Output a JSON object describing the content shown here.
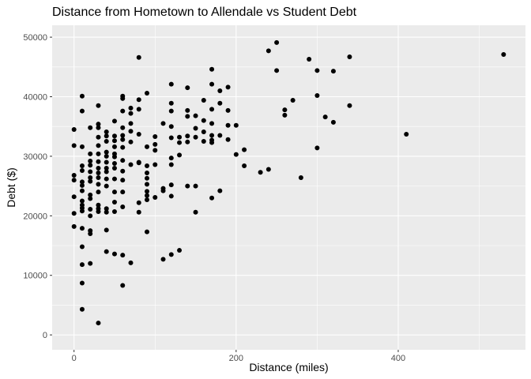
{
  "chart_data": {
    "type": "scatter",
    "title": "Distance from Hometown to Allendale vs Student Debt",
    "xlabel": "Distance (miles)",
    "ylabel": "Debt ($)",
    "xlim": [
      -27,
      557
    ],
    "ylim": [
      -2500,
      52000
    ],
    "x_ticks": [
      0,
      200,
      400
    ],
    "x_tick_labels": [
      "0",
      "200",
      "400"
    ],
    "y_ticks": [
      0,
      10000,
      20000,
      30000,
      40000,
      50000
    ],
    "y_tick_labels": [
      "0",
      "10000",
      "20000",
      "30000",
      "40000",
      "50000"
    ],
    "grid": true,
    "panel_color": "#ebebeb",
    "point_color": "#000000",
    "series": [
      {
        "points": [
          [
            0,
            34500
          ],
          [
            0,
            31800
          ],
          [
            0,
            26800
          ],
          [
            0,
            26000
          ],
          [
            0,
            23200
          ],
          [
            0,
            20400
          ],
          [
            0,
            18200
          ],
          [
            10,
            40100
          ],
          [
            10,
            37600
          ],
          [
            10,
            31600
          ],
          [
            10,
            28400
          ],
          [
            10,
            27600
          ],
          [
            10,
            25700
          ],
          [
            10,
            25100
          ],
          [
            10,
            24200
          ],
          [
            10,
            22500
          ],
          [
            10,
            21800
          ],
          [
            10,
            21300
          ],
          [
            10,
            20800
          ],
          [
            10,
            17900
          ],
          [
            10,
            14800
          ],
          [
            10,
            11800
          ],
          [
            10,
            8700
          ],
          [
            10,
            4300
          ],
          [
            20,
            34800
          ],
          [
            20,
            30400
          ],
          [
            20,
            29200
          ],
          [
            20,
            28500
          ],
          [
            20,
            27400
          ],
          [
            20,
            26400
          ],
          [
            20,
            25800
          ],
          [
            20,
            23500
          ],
          [
            20,
            22900
          ],
          [
            20,
            21100
          ],
          [
            20,
            20000
          ],
          [
            20,
            17500
          ],
          [
            20,
            17000
          ],
          [
            20,
            12000
          ],
          [
            30,
            38500
          ],
          [
            30,
            35400
          ],
          [
            30,
            34800
          ],
          [
            30,
            33200
          ],
          [
            30,
            31800
          ],
          [
            30,
            30400
          ],
          [
            30,
            29100
          ],
          [
            30,
            28000
          ],
          [
            30,
            27200
          ],
          [
            30,
            26400
          ],
          [
            30,
            25300
          ],
          [
            30,
            24000
          ],
          [
            30,
            21800
          ],
          [
            30,
            21200
          ],
          [
            30,
            20700
          ],
          [
            30,
            2000
          ],
          [
            40,
            34100
          ],
          [
            40,
            33400
          ],
          [
            40,
            32500
          ],
          [
            40,
            30700
          ],
          [
            40,
            30000
          ],
          [
            40,
            29000
          ],
          [
            40,
            28000
          ],
          [
            40,
            27400
          ],
          [
            40,
            26200
          ],
          [
            40,
            25000
          ],
          [
            40,
            21200
          ],
          [
            40,
            20600
          ],
          [
            40,
            17600
          ],
          [
            40,
            14000
          ],
          [
            50,
            35900
          ],
          [
            50,
            33400
          ],
          [
            50,
            32600
          ],
          [
            50,
            31600
          ],
          [
            50,
            30400
          ],
          [
            50,
            29900
          ],
          [
            50,
            28800
          ],
          [
            50,
            28000
          ],
          [
            50,
            26200
          ],
          [
            50,
            24000
          ],
          [
            50,
            22300
          ],
          [
            50,
            20700
          ],
          [
            50,
            13600
          ],
          [
            60,
            40100
          ],
          [
            60,
            39700
          ],
          [
            60,
            37600
          ],
          [
            60,
            34800
          ],
          [
            60,
            33500
          ],
          [
            60,
            32800
          ],
          [
            60,
            31500
          ],
          [
            60,
            29300
          ],
          [
            60,
            27500
          ],
          [
            60,
            26000
          ],
          [
            60,
            24000
          ],
          [
            60,
            21500
          ],
          [
            60,
            13400
          ],
          [
            60,
            8300
          ],
          [
            70,
            38100
          ],
          [
            70,
            37200
          ],
          [
            70,
            35500
          ],
          [
            70,
            34200
          ],
          [
            70,
            32400
          ],
          [
            70,
            28600
          ],
          [
            70,
            12100
          ],
          [
            80,
            46600
          ],
          [
            80,
            39500
          ],
          [
            80,
            37900
          ],
          [
            80,
            33700
          ],
          [
            80,
            29000
          ],
          [
            80,
            28900
          ],
          [
            80,
            22200
          ],
          [
            80,
            20600
          ],
          [
            90,
            40600
          ],
          [
            90,
            31600
          ],
          [
            90,
            28400
          ],
          [
            90,
            27200
          ],
          [
            90,
            26300
          ],
          [
            90,
            25300
          ],
          [
            90,
            24100
          ],
          [
            90,
            23400
          ],
          [
            90,
            22700
          ],
          [
            90,
            17300
          ],
          [
            100,
            33300
          ],
          [
            100,
            32000
          ],
          [
            100,
            31000
          ],
          [
            100,
            28600
          ],
          [
            100,
            23100
          ],
          [
            110,
            35500
          ],
          [
            110,
            24600
          ],
          [
            110,
            24200
          ],
          [
            110,
            12700
          ],
          [
            120,
            42100
          ],
          [
            120,
            38900
          ],
          [
            120,
            37600
          ],
          [
            120,
            35000
          ],
          [
            120,
            33100
          ],
          [
            120,
            29700
          ],
          [
            120,
            28600
          ],
          [
            120,
            25200
          ],
          [
            120,
            23300
          ],
          [
            120,
            13500
          ],
          [
            130,
            33200
          ],
          [
            130,
            32300
          ],
          [
            130,
            30200
          ],
          [
            130,
            14200
          ],
          [
            140,
            41500
          ],
          [
            140,
            37700
          ],
          [
            140,
            36700
          ],
          [
            140,
            33400
          ],
          [
            140,
            32400
          ],
          [
            140,
            25000
          ],
          [
            150,
            36800
          ],
          [
            150,
            34700
          ],
          [
            150,
            33200
          ],
          [
            150,
            25000
          ],
          [
            150,
            20600
          ],
          [
            160,
            39400
          ],
          [
            160,
            36000
          ],
          [
            160,
            34100
          ],
          [
            160,
            32500
          ],
          [
            170,
            44600
          ],
          [
            170,
            42100
          ],
          [
            170,
            37900
          ],
          [
            170,
            35500
          ],
          [
            170,
            33500
          ],
          [
            170,
            32700
          ],
          [
            170,
            32300
          ],
          [
            170,
            23000
          ],
          [
            180,
            41000
          ],
          [
            180,
            38900
          ],
          [
            180,
            33500
          ],
          [
            180,
            24200
          ],
          [
            190,
            41600
          ],
          [
            190,
            37700
          ],
          [
            190,
            35200
          ],
          [
            190,
            32800
          ],
          [
            200,
            35200
          ],
          [
            200,
            30300
          ],
          [
            210,
            31100
          ],
          [
            210,
            28400
          ],
          [
            230,
            27300
          ],
          [
            240,
            47700
          ],
          [
            240,
            27800
          ],
          [
            250,
            49100
          ],
          [
            250,
            44400
          ],
          [
            260,
            37800
          ],
          [
            260,
            36900
          ],
          [
            270,
            39400
          ],
          [
            280,
            26400
          ],
          [
            290,
            46300
          ],
          [
            300,
            44400
          ],
          [
            300,
            40200
          ],
          [
            300,
            31400
          ],
          [
            310,
            36600
          ],
          [
            320,
            44300
          ],
          [
            320,
            35700
          ],
          [
            340,
            46700
          ],
          [
            340,
            38500
          ],
          [
            410,
            33700
          ],
          [
            530,
            47100
          ]
        ]
      }
    ]
  }
}
